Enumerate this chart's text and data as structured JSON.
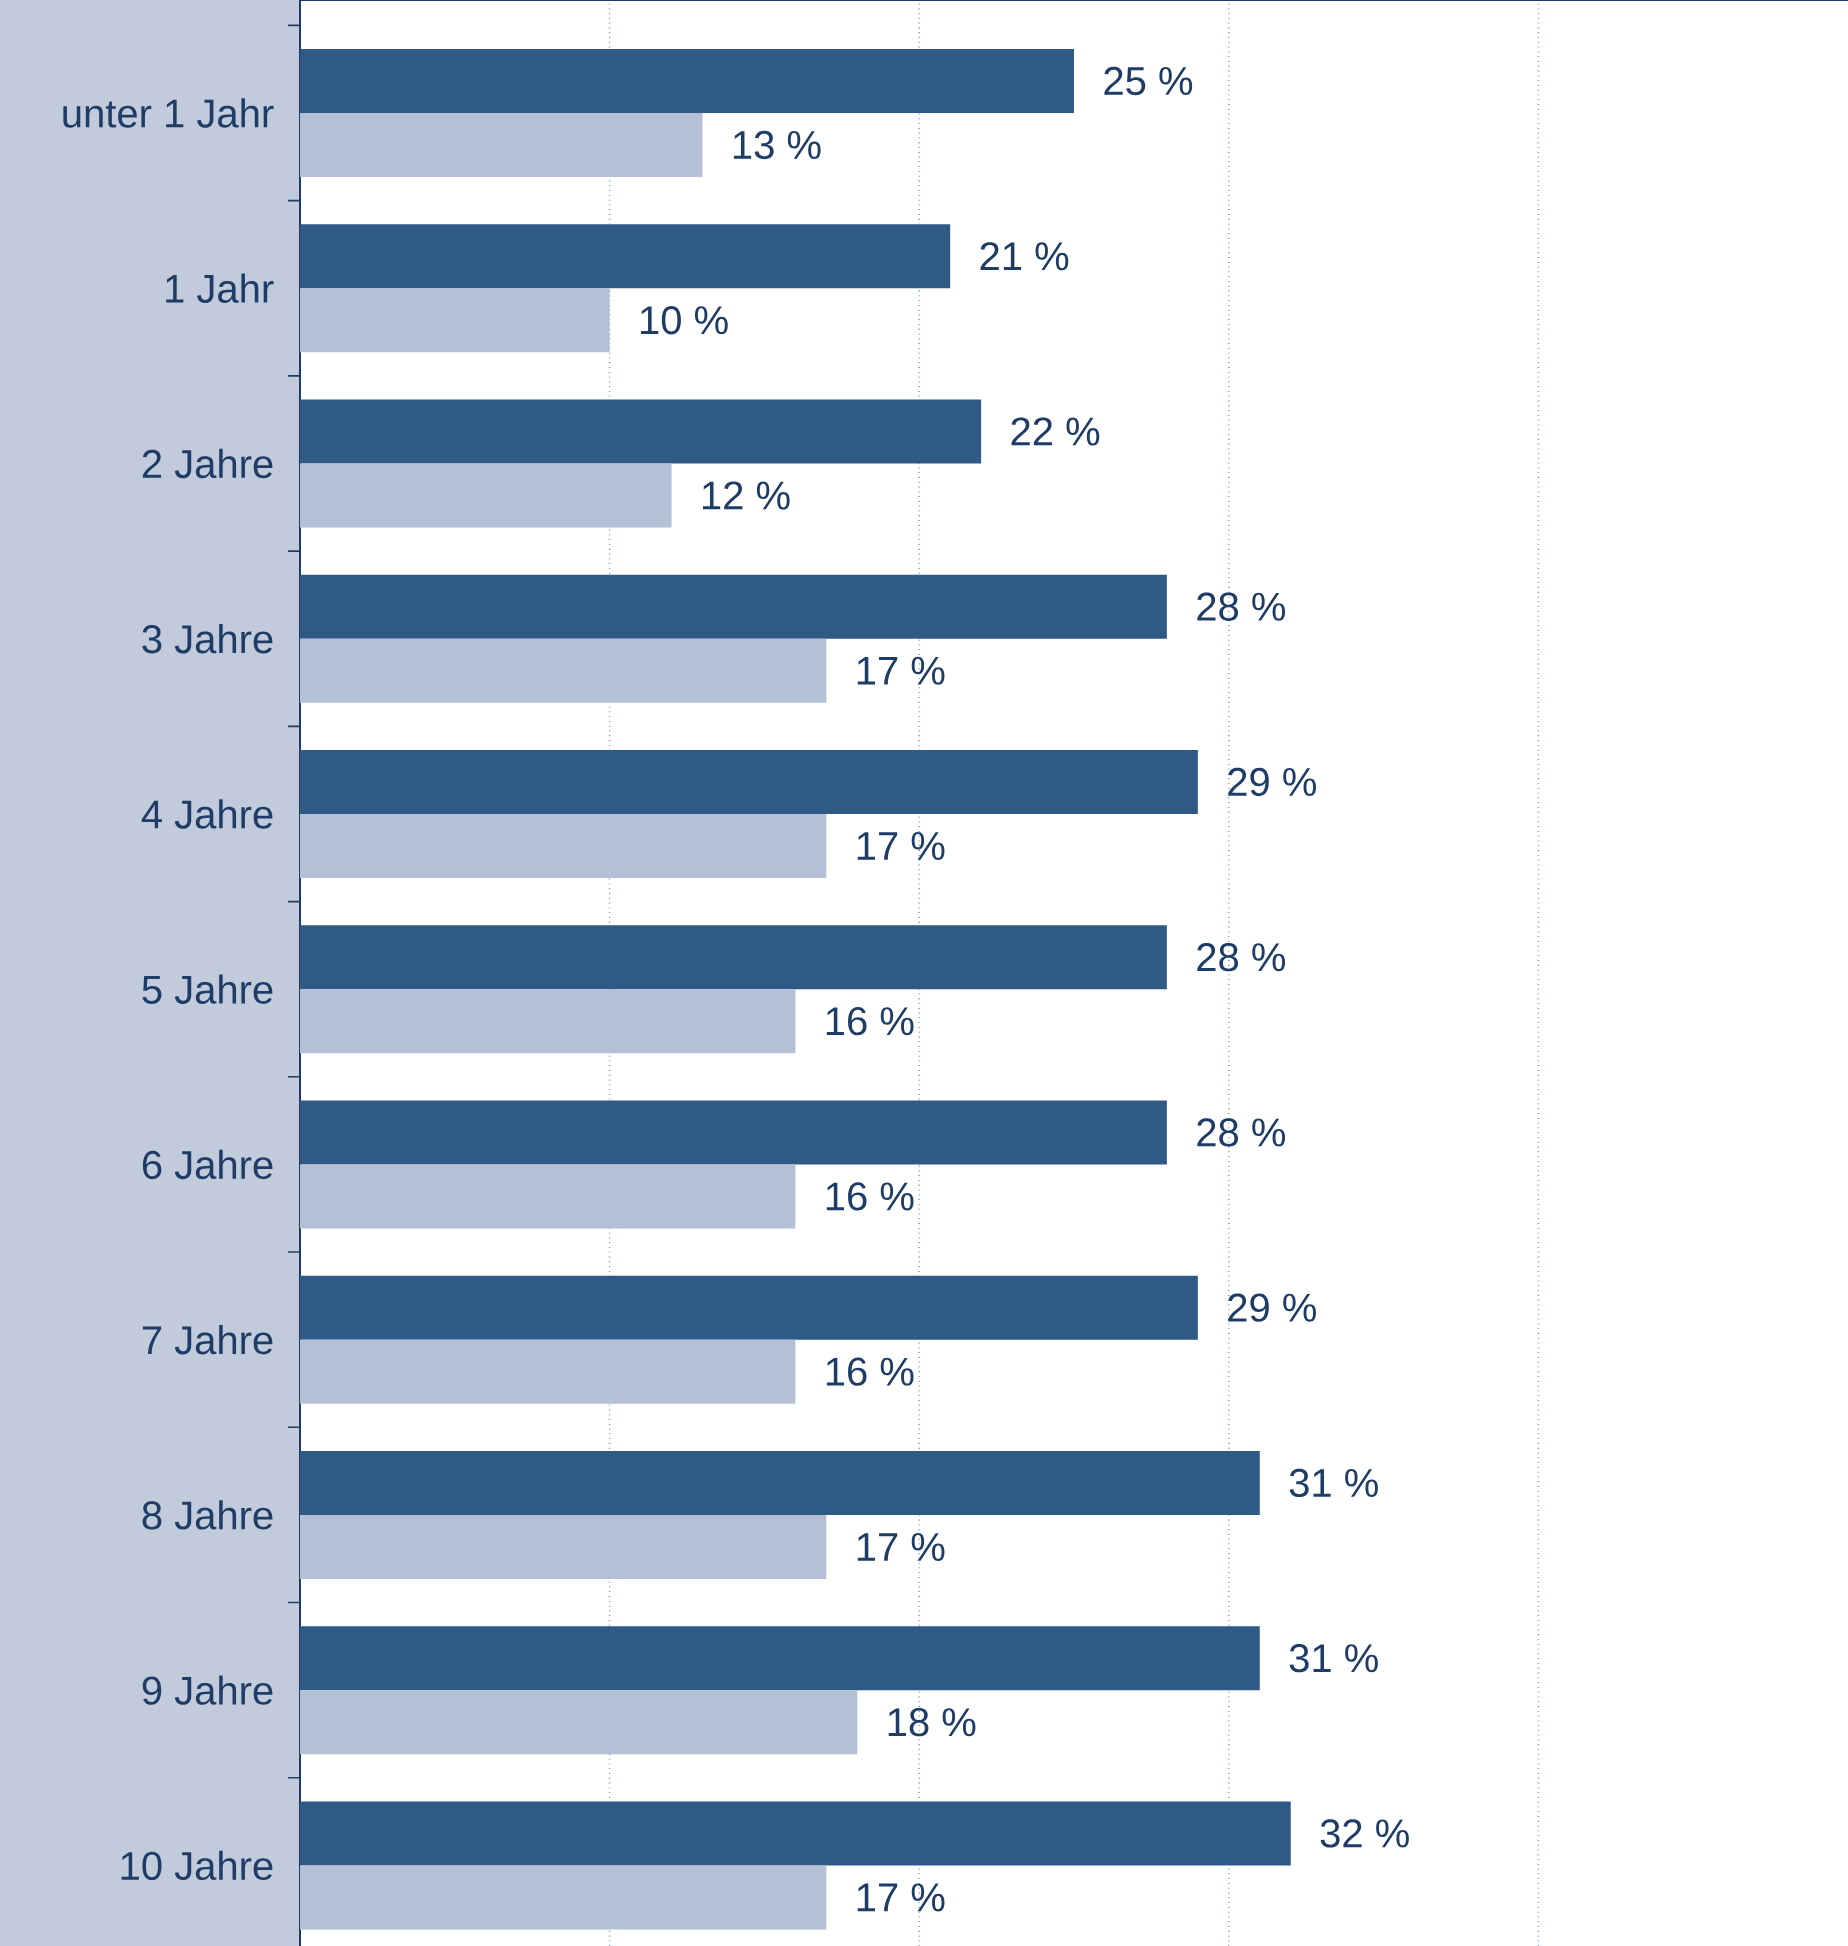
{
  "chart_data": {
    "type": "bar",
    "orientation": "horizontal",
    "categories": [
      "unter 1 Jahr",
      "1 Jahr",
      "2 Jahre",
      "3 Jahre",
      "4 Jahre",
      "5 Jahre",
      "6 Jahre",
      "7 Jahre",
      "8 Jahre",
      "9 Jahre",
      "10 Jahre"
    ],
    "series": [
      {
        "color": "#2f5a85",
        "values": [
          25,
          21,
          22,
          28,
          29,
          28,
          28,
          29,
          31,
          31,
          32
        ],
        "value_labels": [
          "25 %",
          "21 %",
          "22 %",
          "28 %",
          "29 %",
          "28 %",
          "28 %",
          "29 %",
          "31 %",
          "31 %",
          "32 %"
        ]
      },
      {
        "color": "#b4c0d5",
        "values": [
          13,
          10,
          12,
          17,
          17,
          16,
          16,
          16,
          17,
          18,
          17
        ],
        "value_labels": [
          "13 %",
          "10 %",
          "12 %",
          "17 %",
          "17 %",
          "16 %",
          "16 %",
          "16 %",
          "17 %",
          "18 %",
          "17 %"
        ]
      }
    ],
    "xlim": [
      0,
      50
    ],
    "xticks": [
      {
        "value": 10,
        "label": null
      },
      {
        "value": 20,
        "label": null
      },
      {
        "value": 30,
        "label": null
      },
      {
        "value": 40,
        "label": null
      }
    ],
    "grid": "x",
    "tick_labels": "y"
  }
}
